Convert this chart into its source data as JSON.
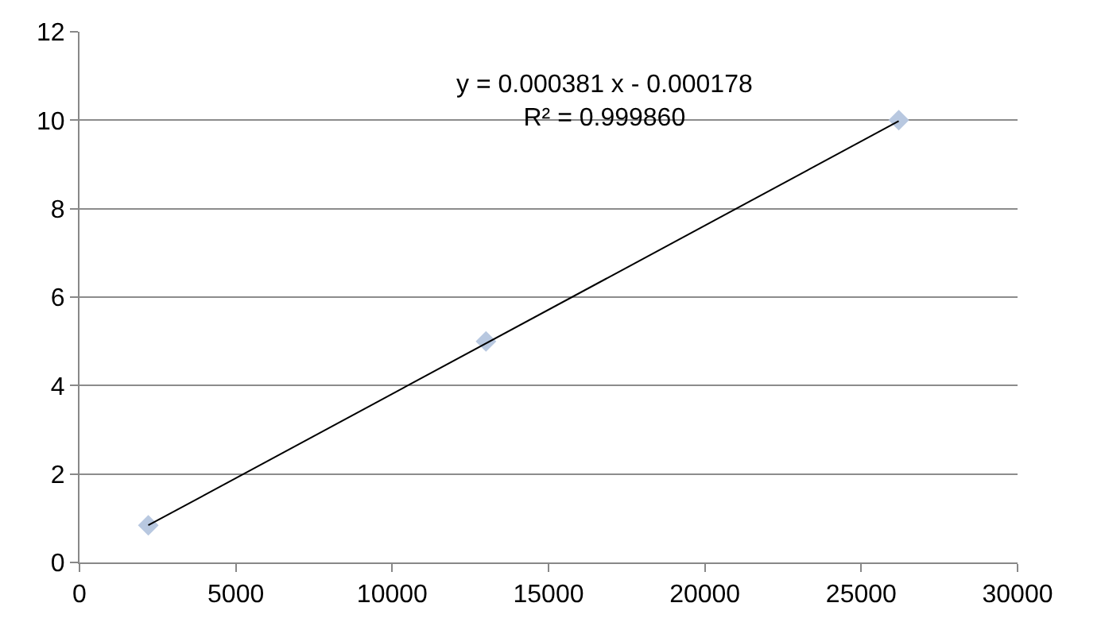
{
  "chart_data": {
    "type": "scatter",
    "xlim": [
      0,
      30000
    ],
    "xticks": [
      0,
      5000,
      10000,
      15000,
      20000,
      25000,
      30000
    ],
    "ylim": [
      0,
      12
    ],
    "yticks": [
      0,
      2,
      4,
      6,
      8,
      10,
      12
    ],
    "grid": "y",
    "legend": false,
    "marker": "diamond",
    "series": [
      {
        "color": "#b8c8e0",
        "x": [
          2200,
          13000,
          26200
        ],
        "values": [
          0.84,
          5,
          10
        ]
      },
      {
        "type": "line",
        "marker": "none",
        "color": "#000000",
        "x": [
          2200,
          26200
        ],
        "values": [
          0.84,
          9.98
        ]
      }
    ],
    "annotations": [
      "y = 0.000381 x - 0.000178\nR² = 0.999860"
    ]
  }
}
